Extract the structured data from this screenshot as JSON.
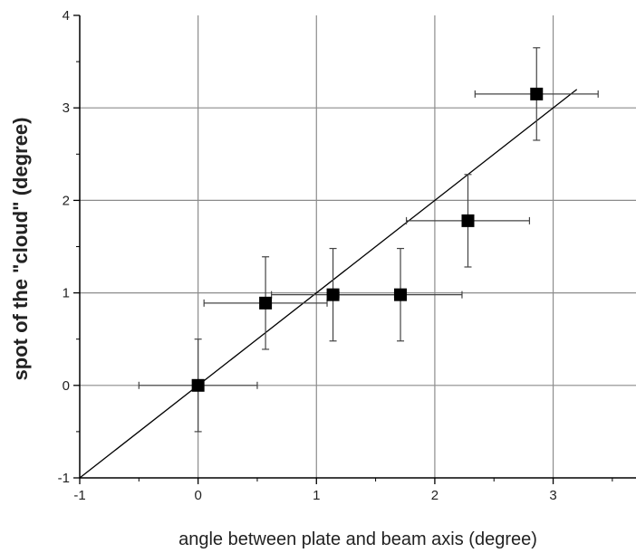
{
  "chart_data": {
    "type": "scatter",
    "title": "",
    "xlabel": "angle  between plate and beam axis (degree)",
    "ylabel": "spot of the \"cloud\" (degree)",
    "xlim": [
      -1,
      3.7
    ],
    "ylim": [
      -1,
      4
    ],
    "xticks": [
      -1,
      0,
      1,
      2,
      3
    ],
    "xtick_labels": [
      "-1",
      "0",
      "1",
      "2",
      "3"
    ],
    "yticks": [
      -1,
      0,
      1,
      2,
      3,
      4
    ],
    "ytick_labels": [
      "-1",
      "0",
      "1",
      "2",
      "3",
      "4"
    ],
    "grid": true,
    "legend": "none",
    "points": [
      {
        "x": 0.0,
        "y": 0.0,
        "xerr": 0.5,
        "yerr": 0.5
      },
      {
        "x": 0.57,
        "y": 0.89,
        "xerr": 0.52,
        "yerr": 0.5
      },
      {
        "x": 1.14,
        "y": 0.98,
        "xerr": 0.52,
        "yerr": 0.5
      },
      {
        "x": 1.71,
        "y": 0.98,
        "xerr": 0.52,
        "yerr": 0.5
      },
      {
        "x": 2.28,
        "y": 1.78,
        "xerr": 0.52,
        "yerr": 0.5
      },
      {
        "x": 2.86,
        "y": 3.15,
        "xerr": 0.52,
        "yerr": 0.5
      }
    ],
    "fit_line": {
      "x": [
        -1,
        3.2
      ],
      "y": [
        -1,
        3.2
      ]
    },
    "marker_color": "#000000",
    "line_color": "#000000",
    "grid_color": "#8c8c8c"
  }
}
